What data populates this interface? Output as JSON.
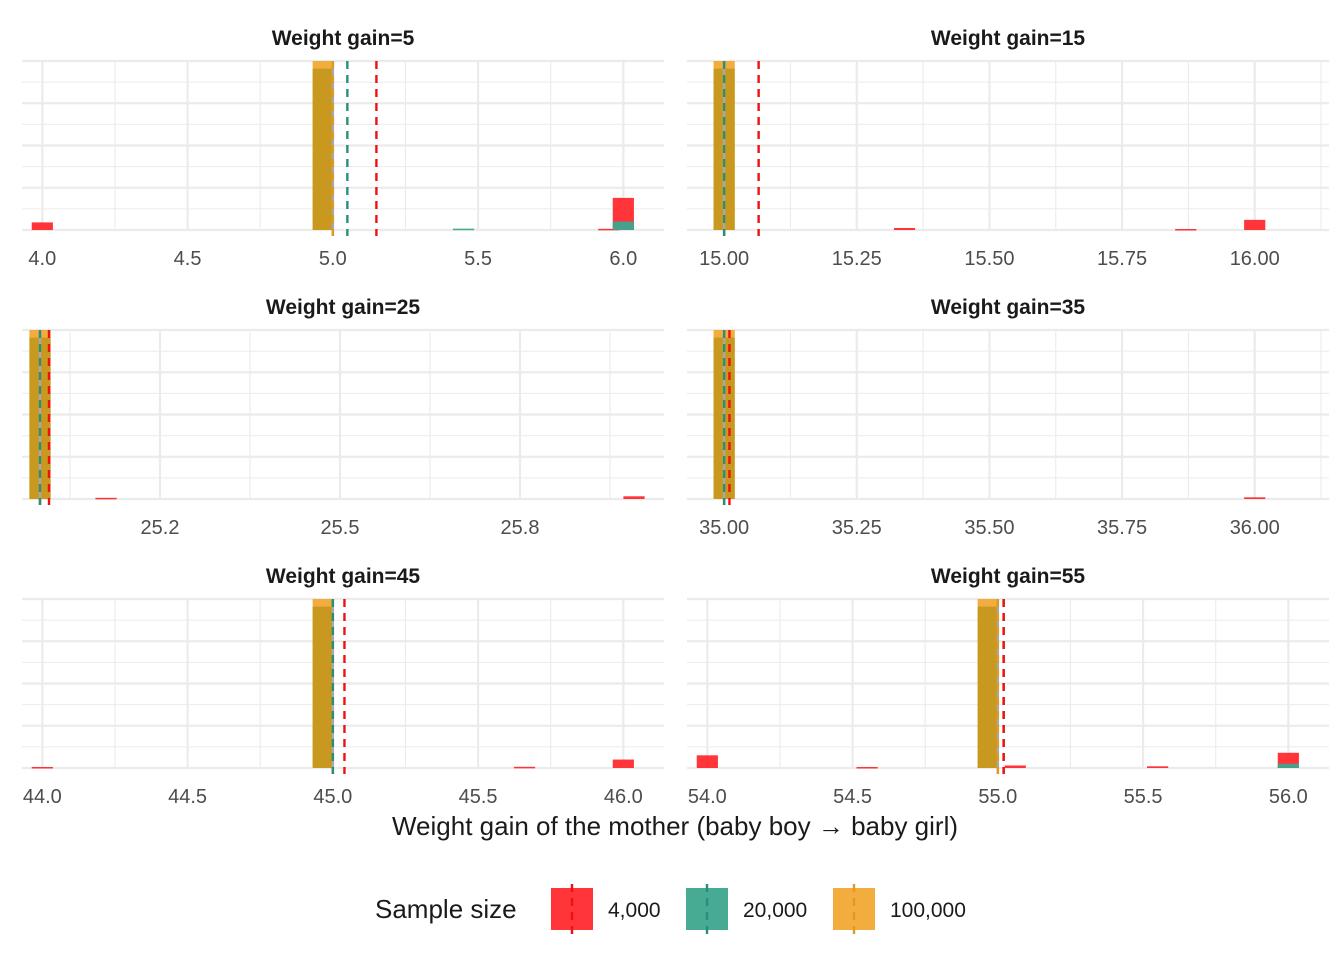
{
  "chart_data": {
    "type": "bar",
    "xlabel": "Weight gain of the mother (baby boy → baby girl)",
    "ylabel": "",
    "grid": true,
    "legend": {
      "title": "Sample size",
      "placement": "bottom",
      "entries": [
        {
          "label": "4,000",
          "color": "#FF2A2F"
        },
        {
          "label": "20,000",
          "color": "#3DA68E"
        },
        {
          "label": "100,000",
          "color": "#F2A935"
        }
      ]
    },
    "colors": {
      "s4000": "#FF2A2F",
      "s20000": "#3DA68E",
      "s100000": "#F2A935",
      "overlap": "#C9981E",
      "reference_line": "#A8A8A8"
    },
    "ylim": [
      0,
      1
    ],
    "panels": [
      {
        "title": "Weight gain=5",
        "xlim": [
          3.93,
          6.14
        ],
        "ticks": [
          4.0,
          4.5,
          5.0,
          5.5,
          6.0
        ],
        "tick_labels": [
          "4.0",
          "4.5",
          "5.0",
          "5.5",
          "6.0"
        ],
        "true_value": 5.0,
        "means": {
          "4000": 5.15,
          "20000": 5.05,
          "100000": 5.0
        },
        "bars": [
          {
            "series": "4000",
            "x": 4.0,
            "height": 0.045
          },
          {
            "series": "100000",
            "x": 4.967,
            "height": 1.0
          },
          {
            "series": "20000",
            "x": 5.45,
            "height": 0.008
          },
          {
            "series": "4000",
            "x": 5.95,
            "height": 0.007
          },
          {
            "series": "4000",
            "x": 6.0,
            "height": 0.19
          },
          {
            "series": "20000",
            "x": 6.0,
            "height": 0.05
          }
        ]
      },
      {
        "title": "Weight gain=15",
        "xlim": [
          14.93,
          16.14
        ],
        "ticks": [
          15.0,
          15.25,
          15.5,
          15.75,
          16.0
        ],
        "tick_labels": [
          "15.00",
          "15.25",
          "15.50",
          "15.75",
          "16.00"
        ],
        "true_value": 15.0,
        "means": {
          "4000": 15.065,
          "20000": 15.0,
          "100000": 15.0
        },
        "bars": [
          {
            "series": "100000",
            "x": 15.0,
            "height": 1.0
          },
          {
            "series": "4000",
            "x": 15.34,
            "height": 0.012
          },
          {
            "series": "4000",
            "x": 15.87,
            "height": 0.006
          },
          {
            "series": "4000",
            "x": 16.0,
            "height": 0.06
          }
        ]
      },
      {
        "title": "Weight gain=25",
        "xlim": [
          24.97,
          26.04
        ],
        "ticks": [
          25.2,
          25.5,
          25.8
        ],
        "tick_labels": [
          "25.2",
          "25.5",
          "25.8"
        ],
        "true_value": 25.0,
        "means": {
          "4000": 25.015,
          "20000": 25.0,
          "100000": 25.0
        },
        "bars": [
          {
            "series": "100000",
            "x": 25.0,
            "height": 1.0
          },
          {
            "series": "4000",
            "x": 25.11,
            "height": 0.007
          },
          {
            "series": "4000",
            "x": 25.99,
            "height": 0.016
          }
        ]
      },
      {
        "title": "Weight gain=35",
        "xlim": [
          34.93,
          36.14
        ],
        "ticks": [
          35.0,
          35.25,
          35.5,
          35.75,
          36.0
        ],
        "tick_labels": [
          "35.00",
          "35.25",
          "35.50",
          "35.75",
          "36.00"
        ],
        "true_value": 35.0,
        "means": {
          "4000": 35.01,
          "20000": 35.0,
          "100000": 35.0
        },
        "bars": [
          {
            "series": "100000",
            "x": 35.0,
            "height": 1.0
          },
          {
            "series": "4000",
            "x": 36.0,
            "height": 0.01
          }
        ]
      },
      {
        "title": "Weight gain=45",
        "xlim": [
          43.93,
          46.14
        ],
        "ticks": [
          44.0,
          44.5,
          45.0,
          45.5,
          46.0
        ],
        "tick_labels": [
          "44.0",
          "44.5",
          "45.0",
          "45.5",
          "46.0"
        ],
        "true_value": 45.0,
        "means": {
          "4000": 45.04,
          "20000": 45.0,
          "100000": 45.0
        },
        "bars": [
          {
            "series": "4000",
            "x": 44.0,
            "height": 0.006
          },
          {
            "series": "100000",
            "x": 44.967,
            "height": 1.0
          },
          {
            "series": "4000",
            "x": 45.66,
            "height": 0.007
          },
          {
            "series": "4000",
            "x": 46.0,
            "height": 0.05
          }
        ]
      },
      {
        "title": "Weight gain=55",
        "xlim": [
          53.93,
          56.14
        ],
        "ticks": [
          54.0,
          54.5,
          55.0,
          55.5,
          56.0
        ],
        "tick_labels": [
          "54.0",
          "54.5",
          "55.0",
          "55.5",
          "56.0"
        ],
        "true_value": 55.0,
        "means": {
          "4000": 55.02,
          "20000": 55.02,
          "100000": 55.0
        },
        "bars": [
          {
            "series": "4000",
            "x": 54.0,
            "height": 0.075
          },
          {
            "series": "4000",
            "x": 54.55,
            "height": 0.006
          },
          {
            "series": "100000",
            "x": 54.967,
            "height": 1.0
          },
          {
            "series": "4000",
            "x": 55.06,
            "height": 0.015
          },
          {
            "series": "4000",
            "x": 55.55,
            "height": 0.01
          },
          {
            "series": "4000",
            "x": 56.0,
            "height": 0.09
          },
          {
            "series": "20000",
            "x": 56.0,
            "height": 0.025
          }
        ]
      }
    ]
  }
}
